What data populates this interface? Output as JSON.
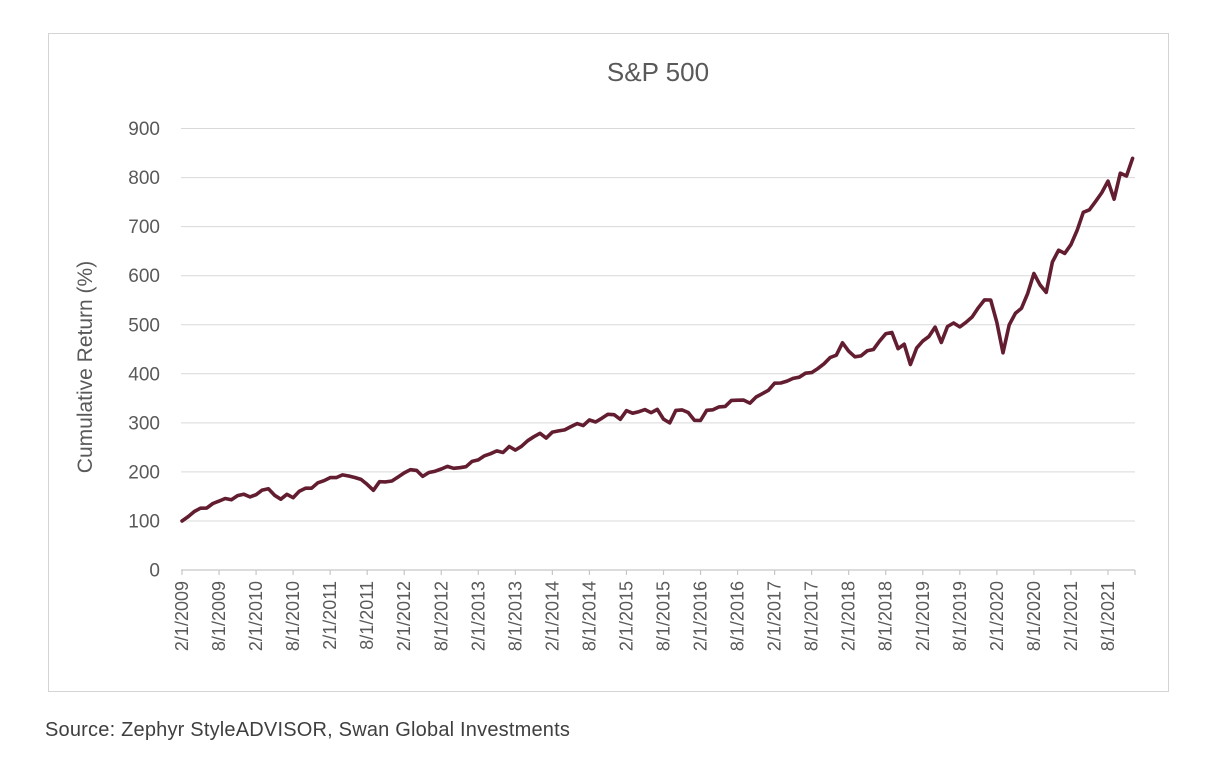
{
  "chart_data": {
    "type": "line",
    "title": "S&P 500",
    "xlabel": "",
    "ylabel": "Cumulative Return (%)",
    "ylim": [
      0,
      900
    ],
    "y_ticks": [
      0,
      100,
      200,
      300,
      400,
      500,
      600,
      700,
      800,
      900
    ],
    "grid": "horizontal",
    "legend": "none",
    "x_start": "2/1/2009",
    "x_frequency": "monthly",
    "x_tick_labels": [
      "2/1/2009",
      "8/1/2009",
      "2/1/2010",
      "8/1/2010",
      "2/1/2011",
      "8/1/2011",
      "2/1/2012",
      "8/1/2012",
      "2/1/2013",
      "8/1/2013",
      "2/1/2014",
      "8/1/2014",
      "2/1/2015",
      "8/1/2015",
      "2/1/2016",
      "8/1/2016",
      "2/1/2017",
      "8/1/2017",
      "2/1/2018",
      "8/1/2018",
      "2/1/2019",
      "8/1/2019",
      "2/1/2020",
      "8/1/2020",
      "2/1/2021",
      "8/1/2021"
    ],
    "months_per_tick": 6,
    "series": [
      {
        "name": "S&P 500",
        "color": "#631d30",
        "values": [
          100.0,
          108.8,
          119.2,
          125.9,
          126.1,
          135.6,
          140.5,
          145.8,
          143.1,
          151.7,
          154.6,
          149.0,
          153.6,
          162.9,
          165.5,
          152.3,
          144.3,
          154.4,
          147.4,
          160.6,
          166.7,
          166.7,
          177.8,
          182.0,
          188.3,
          188.3,
          193.9,
          191.7,
          188.5,
          184.7,
          174.6,
          162.4,
          180.1,
          179.7,
          181.5,
          189.7,
          197.9,
          204.4,
          203.1,
          190.9,
          198.7,
          201.5,
          206.0,
          211.3,
          207.4,
          208.6,
          210.5,
          221.4,
          224.4,
          232.8,
          237.2,
          242.8,
          239.5,
          251.7,
          244.4,
          252.1,
          263.7,
          271.7,
          278.6,
          268.9,
          281.2,
          283.6,
          285.7,
          292.4,
          298.5,
          294.3,
          306.1,
          301.8,
          309.2,
          317.5,
          316.7,
          307.2,
          324.9,
          319.7,
          322.8,
          327.0,
          320.6,
          327.4,
          307.6,
          300.0,
          325.3,
          326.3,
          321.1,
          305.2,
          304.8,
          325.5,
          326.7,
          332.6,
          333.5,
          345.8,
          346.2,
          346.3,
          340.0,
          352.6,
          359.5,
          366.3,
          380.9,
          381.3,
          385.2,
          390.7,
          393.1,
          401.2,
          402.4,
          410.7,
          420.3,
          433.2,
          438.0,
          463.1,
          446.0,
          434.7,
          436.4,
          446.9,
          449.6,
          466.4,
          481.6,
          484.3,
          451.2,
          460.4,
          418.9,
          452.4,
          466.9,
          476.0,
          495.3,
          463.8,
          496.5,
          503.6,
          495.6,
          504.9,
          515.8,
          534.6,
          550.7,
          550.5,
          505.2,
          442.8,
          499.6,
          523.4,
          533.8,
          563.9,
          604.4,
          581.5,
          566.0,
          627.9,
          652.0,
          645.4,
          663.2,
          692.3,
          729.2,
          734.3,
          751.5,
          769.4,
          792.8,
          755.9,
          808.9,
          803.3,
          839.3
        ]
      }
    ]
  },
  "source_note": "Source: Zephyr StyleADVISOR, Swan Global Investments",
  "colors": {
    "line": "#631d30",
    "gridline": "#d9d9d9",
    "axis": "#c6c6c6",
    "tick_text": "#595959",
    "title_text": "#595959",
    "source_text": "#3f3f3f",
    "box_border": "#d4d4d4",
    "background": "#ffffff"
  }
}
